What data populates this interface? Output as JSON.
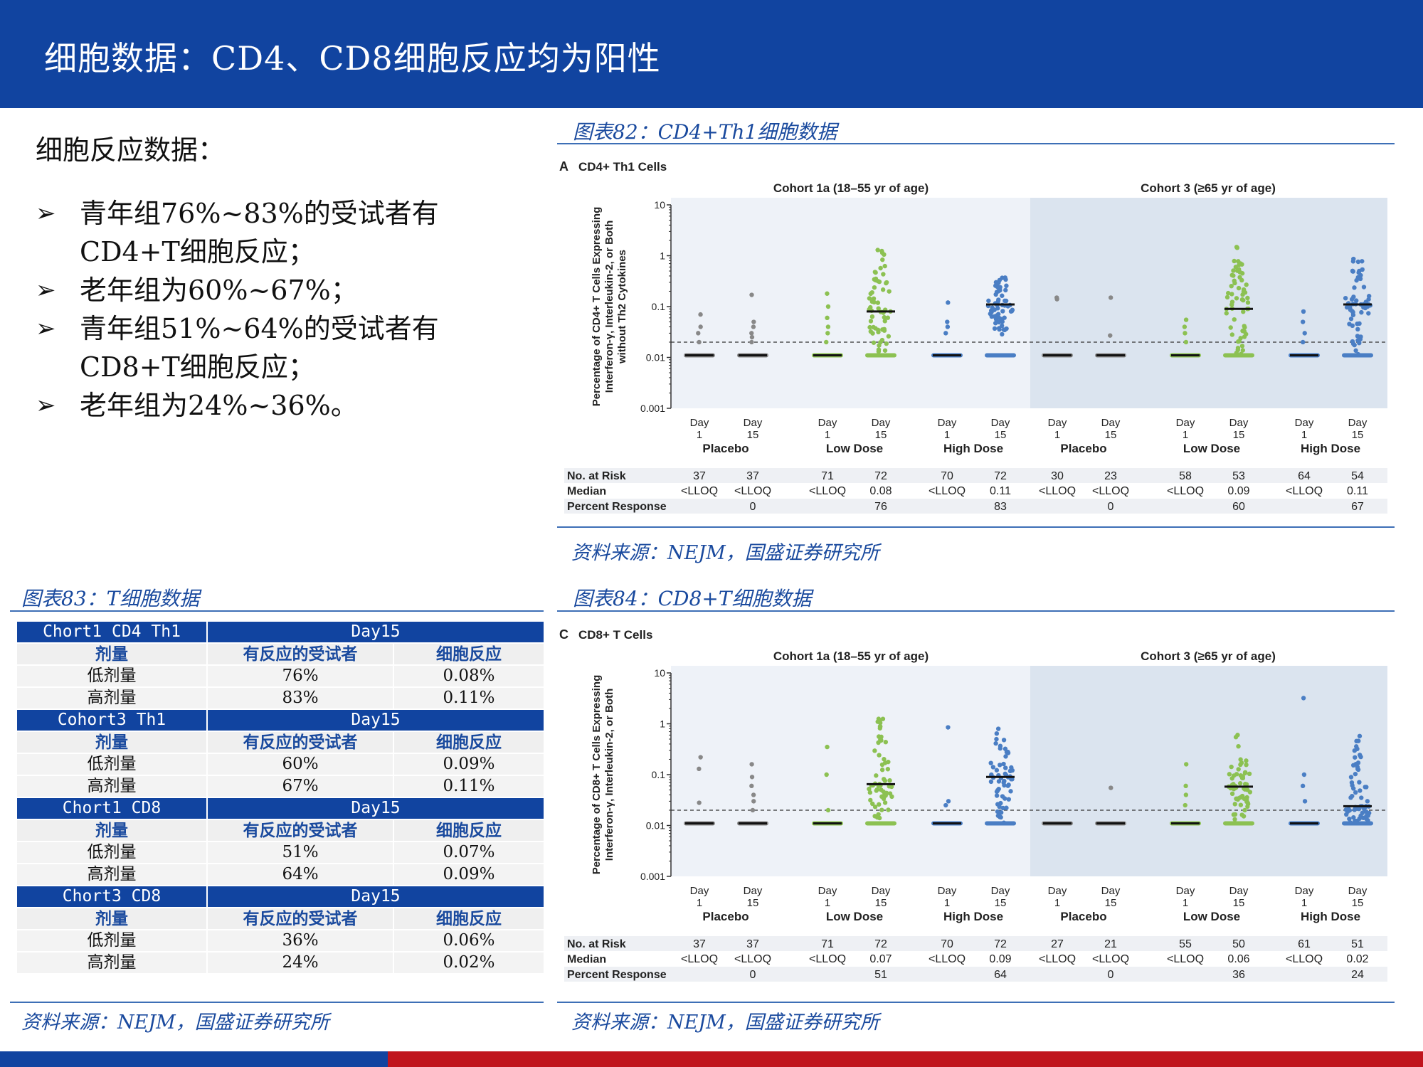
{
  "header": {
    "title": "细胞数据：CD4、CD8细胞反应均为阳性"
  },
  "intro": {
    "title": "细胞反应数据：",
    "bullets": [
      "青年组76%~83%的受试者有CD4+T细胞反应；",
      "老年组为60%~67%；",
      "青年组51%~64%的受试者有CD8+T细胞反应；",
      "老年组为24%~36%。"
    ]
  },
  "figure82": {
    "caption": "图表82：CD4+Th1细胞数据",
    "source": "资料来源：NEJM，国盛证券研究所"
  },
  "figure83": {
    "caption": "图表83：T细胞数据",
    "source": "资料来源：NEJM，国盛证券研究所"
  },
  "figure84": {
    "caption": "图表84：CD8+T细胞数据",
    "source": "资料来源：NEJM，国盛证券研究所"
  },
  "table": {
    "groups": [
      {
        "name": "Chort1 CD4 Th1",
        "day": "Day15",
        "h1": "剂量",
        "h2": "有反应的受试者",
        "h3": "细胞反应",
        "rows": [
          [
            "低剂量",
            "76%",
            "0.08%"
          ],
          [
            "高剂量",
            "83%",
            "0.11%"
          ]
        ]
      },
      {
        "name": "Cohort3 Th1",
        "day": "Day15",
        "h1": "剂量",
        "h2": "有反应的受试者",
        "h3": "细胞反应",
        "rows": [
          [
            "低剂量",
            "60%",
            "0.09%"
          ],
          [
            "高剂量",
            "67%",
            "0.11%"
          ]
        ]
      },
      {
        "name": "Chort1 CD8",
        "day": "Day15",
        "h1": "剂量",
        "h2": "有反应的受试者",
        "h3": "细胞反应",
        "rows": [
          [
            "低剂量",
            "51%",
            "0.07%"
          ],
          [
            "高剂量",
            "64%",
            "0.09%"
          ]
        ]
      },
      {
        "name": "Chort3 CD8",
        "day": "Day15",
        "h1": "剂量",
        "h2": "有反应的受试者",
        "h3": "细胞反应",
        "rows": [
          [
            "低剂量",
            "36%",
            "0.06%"
          ],
          [
            "高剂量",
            "24%",
            "0.02%"
          ]
        ]
      }
    ]
  },
  "chart_data": [
    {
      "type": "scatter",
      "panel": "A",
      "title": "CD4+ Th1 Cells",
      "ylabel": "Percentage of CD4+ T Cells Expressing Interferon-γ, Interleukin-2, or Both without Th2 Cytokines",
      "yscale": "log",
      "ylim": [
        0.001,
        10
      ],
      "yticks": [
        "0.001",
        "0.01",
        "0.1",
        "1",
        "10"
      ],
      "lloq_line": 0.02,
      "cohorts": [
        "Cohort 1a (18–55 yr of age)",
        "Cohort 3 (≥65 yr of age)"
      ],
      "groups": [
        "Placebo",
        "Low Dose",
        "High Dose",
        "Placebo",
        "Low Dose",
        "High Dose"
      ],
      "day_labels": [
        [
          "Day",
          "1"
        ],
        [
          "Day",
          "15"
        ]
      ],
      "table_labels": [
        "No. at Risk",
        "Median",
        "Percent Response"
      ],
      "columns": [
        {
          "group": "Placebo",
          "day": "Day 1",
          "color": "#888888",
          "n": "37",
          "median": "<LLOQ",
          "resp": "",
          "median_value": 0.011,
          "upper": [
            0.07,
            0.04,
            0.03,
            0.02
          ]
        },
        {
          "group": "Placebo",
          "day": "Day 15",
          "color": "#888888",
          "n": "37",
          "median": "<LLOQ",
          "resp": "0",
          "median_value": 0.011,
          "upper": [
            0.17,
            0.05,
            0.04,
            0.03,
            0.025,
            0.02
          ]
        },
        {
          "group": "Low Dose",
          "day": "Day 1",
          "color": "#8cc152",
          "n": "71",
          "median": "<LLOQ",
          "resp": "",
          "median_value": 0.011,
          "upper": [
            0.18,
            0.1,
            0.06,
            0.04,
            0.03,
            0.02
          ]
        },
        {
          "group": "Low Dose",
          "day": "Day 15",
          "color": "#8cc152",
          "n": "72",
          "median": "0.08",
          "resp": "76",
          "median_value": 0.08,
          "spread": [
            0.012,
            1.6
          ]
        },
        {
          "group": "High Dose",
          "day": "Day 1",
          "color": "#4a7ec4",
          "n": "70",
          "median": "<LLOQ",
          "resp": "",
          "median_value": 0.011,
          "upper": [
            0.12,
            0.05,
            0.04,
            0.03
          ]
        },
        {
          "group": "High Dose",
          "day": "Day 15",
          "color": "#4a7ec4",
          "n": "72",
          "median": "0.11",
          "resp": "83",
          "median_value": 0.11,
          "spread": [
            0.028,
            0.65
          ]
        },
        {
          "group": "Placebo",
          "day": "Day 1",
          "color": "#888888",
          "n": "30",
          "median": "<LLOQ",
          "resp": "",
          "median_value": 0.011,
          "upper": [
            0.15,
            0.14
          ]
        },
        {
          "group": "Placebo",
          "day": "Day 15",
          "color": "#888888",
          "n": "23",
          "median": "<LLOQ",
          "resp": "0",
          "median_value": 0.011,
          "upper": [
            0.15,
            0.027
          ]
        },
        {
          "group": "Low Dose",
          "day": "Day 1",
          "color": "#8cc152",
          "n": "58",
          "median": "<LLOQ",
          "resp": "",
          "median_value": 0.011,
          "upper": [
            0.055,
            0.04,
            0.03,
            0.02
          ]
        },
        {
          "group": "Low Dose",
          "day": "Day 15",
          "color": "#8cc152",
          "n": "53",
          "median": "0.09",
          "resp": "60",
          "median_value": 0.09,
          "spread": [
            0.011,
            1.5
          ]
        },
        {
          "group": "High Dose",
          "day": "Day 1",
          "color": "#4a7ec4",
          "n": "64",
          "median": "<LLOQ",
          "resp": "",
          "median_value": 0.011,
          "upper": [
            0.08,
            0.05,
            0.03,
            0.02
          ]
        },
        {
          "group": "High Dose",
          "day": "Day 15",
          "color": "#4a7ec4",
          "n": "54",
          "median": "0.11",
          "resp": "67",
          "median_value": 0.11,
          "spread": [
            0.011,
            0.9
          ]
        }
      ]
    },
    {
      "type": "scatter",
      "panel": "C",
      "title": "CD8+ T Cells",
      "ylabel": "Percentage of CD8+ T Cells Expressing Interferon-γ, Interleukin-2, or Both",
      "yscale": "log",
      "ylim": [
        0.001,
        10
      ],
      "yticks": [
        "0.001",
        "0.01",
        "0.1",
        "1",
        "10"
      ],
      "lloq_line": 0.02,
      "cohorts": [
        "Cohort 1a (18–55 yr of age)",
        "Cohort 3 (≥65 yr of age)"
      ],
      "groups": [
        "Placebo",
        "Low Dose",
        "High Dose",
        "Placebo",
        "Low Dose",
        "High Dose"
      ],
      "day_labels": [
        [
          "Day",
          "1"
        ],
        [
          "Day",
          "15"
        ]
      ],
      "table_labels": [
        "No. at Risk",
        "Median",
        "Percent Response"
      ],
      "columns": [
        {
          "group": "Placebo",
          "day": "Day 1",
          "color": "#888888",
          "n": "37",
          "median": "<LLOQ",
          "resp": "",
          "median_value": 0.011,
          "upper": [
            0.22,
            0.13,
            0.028
          ]
        },
        {
          "group": "Placebo",
          "day": "Day 15",
          "color": "#888888",
          "n": "37",
          "median": "<LLOQ",
          "resp": "0",
          "median_value": 0.011,
          "upper": [
            0.16,
            0.09,
            0.06,
            0.04,
            0.03,
            0.02
          ]
        },
        {
          "group": "Low Dose",
          "day": "Day 1",
          "color": "#8cc152",
          "n": "71",
          "median": "<LLOQ",
          "resp": "",
          "median_value": 0.011,
          "upper": [
            0.35,
            0.1,
            0.02
          ]
        },
        {
          "group": "Low Dose",
          "day": "Day 15",
          "color": "#8cc152",
          "n": "72",
          "median": "0.07",
          "resp": "51",
          "median_value": 0.065,
          "spread": [
            0.011,
            1.3
          ]
        },
        {
          "group": "High Dose",
          "day": "Day 1",
          "color": "#4a7ec4",
          "n": "70",
          "median": "<LLOQ",
          "resp": "",
          "median_value": 0.011,
          "upper": [
            0.85,
            0.03,
            0.025
          ]
        },
        {
          "group": "High Dose",
          "day": "Day 15",
          "color": "#4a7ec4",
          "n": "72",
          "median": "0.09",
          "resp": "64",
          "median_value": 0.09,
          "spread": [
            0.011,
            0.8
          ]
        },
        {
          "group": "Placebo",
          "day": "Day 1",
          "color": "#888888",
          "n": "27",
          "median": "<LLOQ",
          "resp": "",
          "median_value": 0.011,
          "upper": []
        },
        {
          "group": "Placebo",
          "day": "Day 15",
          "color": "#888888",
          "n": "21",
          "median": "<LLOQ",
          "resp": "0",
          "median_value": 0.011,
          "upper": [
            0.055
          ]
        },
        {
          "group": "Low Dose",
          "day": "Day 1",
          "color": "#8cc152",
          "n": "55",
          "median": "<LLOQ",
          "resp": "",
          "median_value": 0.011,
          "upper": [
            0.16,
            0.06,
            0.04,
            0.025
          ]
        },
        {
          "group": "Low Dose",
          "day": "Day 15",
          "color": "#8cc152",
          "n": "50",
          "median": "0.06",
          "resp": "36",
          "median_value": 0.058,
          "spread": [
            0.011,
            0.65
          ]
        },
        {
          "group": "High Dose",
          "day": "Day 1",
          "color": "#4a7ec4",
          "n": "61",
          "median": "<LLOQ",
          "resp": "",
          "median_value": 0.011,
          "upper": [
            3.2,
            0.1,
            0.06,
            0.03
          ]
        },
        {
          "group": "High Dose",
          "day": "Day 15",
          "color": "#4a7ec4",
          "n": "51",
          "median": "0.02",
          "resp": "24",
          "median_value": 0.024,
          "spread": [
            0.011,
            0.6
          ]
        }
      ]
    }
  ]
}
